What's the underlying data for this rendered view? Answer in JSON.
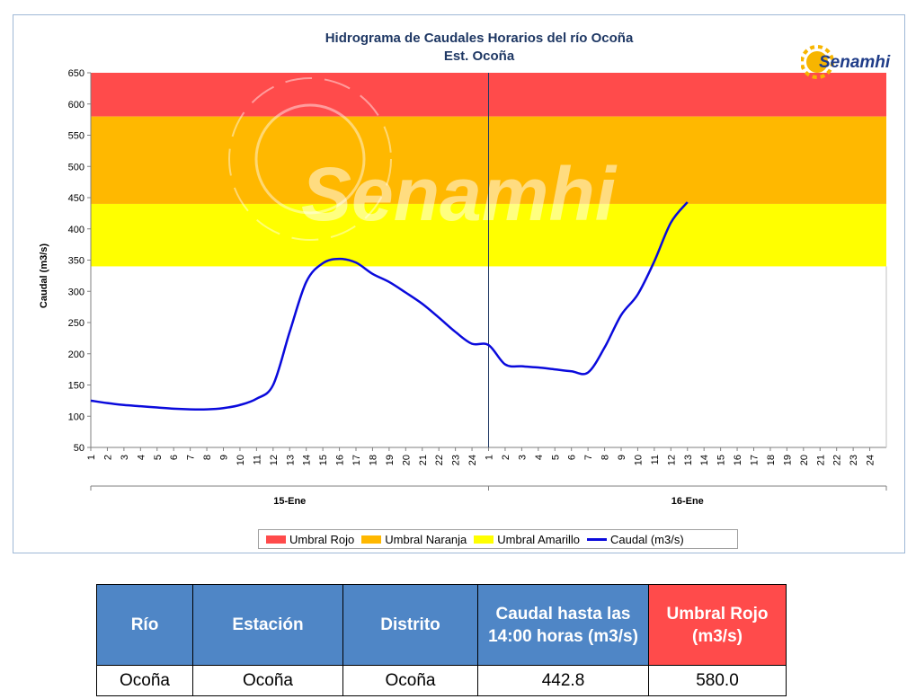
{
  "chart_data": {
    "type": "line",
    "title": "Hidrograma de Caudales Horarios del río Ocoña",
    "subtitle": "Est. Ocoña",
    "ylabel": "Caudal  (m3/s)",
    "ylim": [
      50,
      650
    ],
    "yticks": [
      50,
      100,
      150,
      200,
      250,
      300,
      350,
      400,
      450,
      500,
      550,
      600,
      650
    ],
    "x_hour_labels": [
      "1",
      "2",
      "3",
      "4",
      "5",
      "6",
      "7",
      "8",
      "9",
      "10",
      "11",
      "12",
      "13",
      "14",
      "15",
      "16",
      "17",
      "18",
      "19",
      "20",
      "21",
      "22",
      "23",
      "24"
    ],
    "days": [
      "15-Ene",
      "16-Ene"
    ],
    "thresholds": [
      {
        "name": "Umbral Rojo",
        "from": 580,
        "to": 650,
        "color": "#ff4b4b"
      },
      {
        "name": "Umbral Naranja",
        "from": 440,
        "to": 580,
        "color": "#ffb800"
      },
      {
        "name": "Umbral Amarillo",
        "from": 340,
        "to": 440,
        "color": "#ffff00"
      }
    ],
    "series": [
      {
        "name": "Caudal (m3/s)",
        "color": "#0a0adc",
        "values_day1": [
          125,
          121,
          118,
          116,
          114,
          112,
          111,
          111,
          113,
          118,
          128,
          150,
          235,
          315,
          345,
          352,
          346,
          328,
          315,
          298,
          280,
          258,
          235,
          216
        ],
        "values_day2": [
          214,
          183,
          180,
          178,
          175,
          172,
          170,
          210,
          262,
          295,
          348,
          410,
          442.8
        ]
      }
    ],
    "grid": false,
    "legend_position": "bottom"
  },
  "watermark_text": "Senamhi",
  "logo": {
    "text": "Senamhi",
    "icon": "sun-logo-icon"
  },
  "table": {
    "headers": [
      "Río",
      "Estación",
      "Distrito",
      "Caudal hasta las 14:00 horas (m3/s)",
      "Umbral  Rojo (m3/s)"
    ],
    "row": [
      "Ocoña",
      "Ocoña",
      "Ocoña",
      "442.8",
      "580.0"
    ]
  }
}
